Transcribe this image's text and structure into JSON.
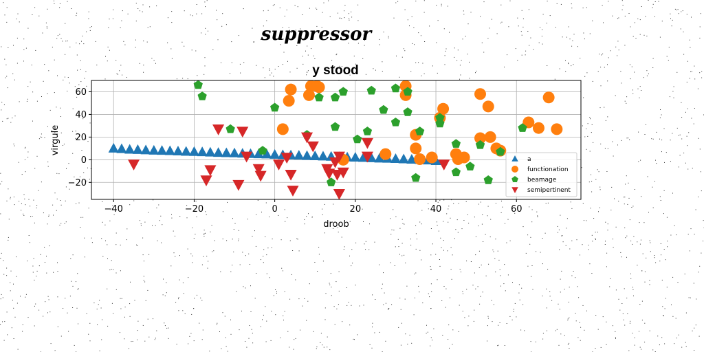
{
  "figure": {
    "suptitle": "suppressor"
  },
  "chart_data": {
    "type": "scatter",
    "title": "y stood",
    "xlabel": "droob",
    "ylabel": "virgule",
    "xlim": [
      -45.5,
      76
    ],
    "ylim": [
      -35,
      70
    ],
    "xticks": [
      -40,
      -20,
      0,
      20,
      40,
      60
    ],
    "yticks": [
      -20,
      0,
      20,
      40,
      60
    ],
    "grid": true,
    "legend_position": "lower-right",
    "series": [
      {
        "name": "a",
        "marker": "triangle-up",
        "color": "#1f77b4",
        "x": [
          -40,
          -38,
          -36,
          -34,
          -32,
          -30,
          -28,
          -26,
          -24,
          -22,
          -20,
          -18,
          -16,
          -14,
          -12,
          -10,
          -8,
          -6,
          -4,
          -2,
          0,
          2,
          4,
          6,
          8,
          10,
          12,
          14,
          16,
          18,
          20,
          22,
          24,
          26,
          28,
          30,
          32,
          34,
          36,
          38,
          40
        ],
        "y": [
          10,
          9.5,
          9,
          8.8,
          8.5,
          8.2,
          8,
          7.8,
          7.5,
          7.2,
          7,
          6.8,
          6.5,
          6.2,
          6,
          5.8,
          5.5,
          5.2,
          5,
          4.8,
          4.5,
          4.2,
          4,
          3.8,
          3.5,
          3.2,
          3,
          2.8,
          2.5,
          2.2,
          2,
          1.8,
          1.5,
          1.2,
          1,
          0.8,
          0.5,
          0.2,
          0,
          -0.5,
          -1
        ]
      },
      {
        "name": "functionation",
        "marker": "circle",
        "color": "#ff7f0e",
        "x": [
          2,
          3.5,
          4,
          8.5,
          9,
          10.5,
          11,
          17,
          27.5,
          32.5,
          32.5,
          35,
          35,
          36,
          39,
          41,
          41.8,
          45,
          45.5,
          47,
          51,
          51,
          53,
          53.5,
          55,
          56,
          63,
          65.5,
          68,
          70
        ],
        "y": [
          27,
          52,
          62,
          57,
          65,
          65,
          64,
          0,
          5,
          57,
          65,
          22,
          10,
          0.5,
          2,
          37,
          45,
          5,
          0.5,
          2,
          58,
          19,
          47,
          20,
          10,
          8,
          33,
          28,
          55,
          27
        ]
      },
      {
        "name": "beamage",
        "marker": "pentagon",
        "color": "#2ca02c",
        "x": [
          -19,
          -18,
          -11,
          -3,
          0,
          8,
          11,
          15,
          15,
          17,
          14,
          20.5,
          23,
          24,
          27,
          30,
          30,
          33,
          33,
          35,
          36,
          41,
          41,
          45,
          45,
          48.5,
          51,
          53,
          56,
          61.5
        ],
        "y": [
          66,
          56,
          27,
          8,
          46,
          22,
          55,
          55,
          29,
          60,
          -20,
          18,
          25,
          61,
          44,
          33,
          63,
          42,
          60,
          -16,
          25,
          32,
          37,
          -11,
          14,
          -6,
          13,
          -18,
          7,
          28
        ]
      },
      {
        "name": "semipertinent",
        "marker": "triangle-down",
        "color": "#d62728",
        "x": [
          -35,
          -16,
          -17,
          -14,
          -9,
          -8,
          -7,
          -4,
          -3.5,
          1,
          3,
          4,
          4.5,
          8,
          9.5,
          13,
          13.5,
          15,
          15.5,
          16,
          16,
          17,
          23,
          23,
          42
        ],
        "y": [
          -4,
          -9,
          -18,
          27,
          -22,
          25,
          3,
          -8,
          -14,
          -4,
          2,
          -13,
          -27,
          20,
          12,
          -8,
          -12,
          -2,
          -13,
          3,
          -30,
          -11,
          15,
          3,
          -4
        ]
      }
    ]
  }
}
